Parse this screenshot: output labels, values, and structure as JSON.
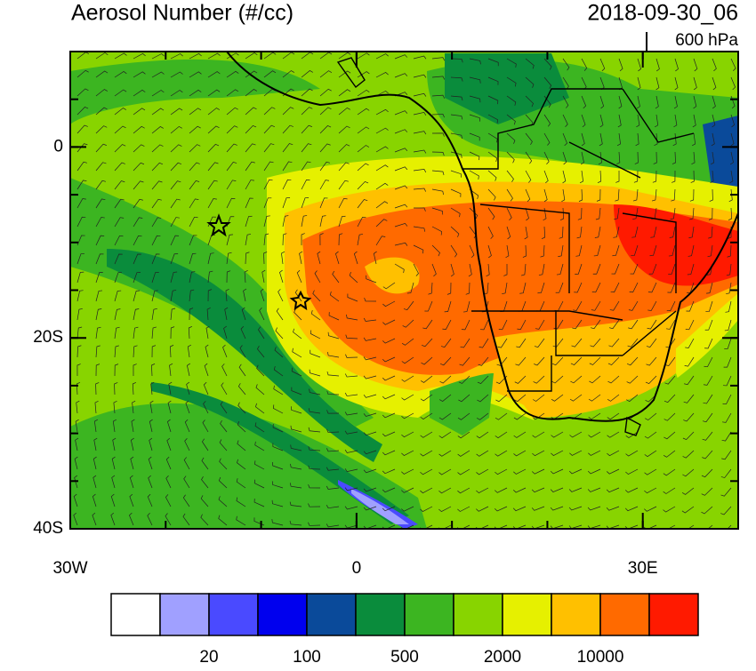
{
  "map": {
    "title": "Aerosol Number (#/cc)",
    "time": "2018-09-30_06",
    "level": "600 hPa",
    "xlim": [
      -30,
      40
    ],
    "ylim": [
      -40,
      10
    ],
    "xticks": [
      {
        "value": -30,
        "label": "30W"
      },
      0,
      {
        "value": 30,
        "label": "30E"
      }
    ],
    "yticks": [
      0,
      {
        "value": -20,
        "label": "20S"
      },
      {
        "value": -40,
        "label": "40S"
      }
    ],
    "colorbar": {
      "colors": [
        "#ffffff",
        "#a0a0ff",
        "#4a4aff",
        "#0000ee",
        "#0a4a9a",
        "#0a8c3c",
        "#3cb521",
        "#88d400",
        "#e6f000",
        "#ffc000",
        "#ff6a00",
        "#ff1a00"
      ],
      "ticks": [
        20,
        100,
        500,
        2000,
        10000
      ]
    }
  }
}
